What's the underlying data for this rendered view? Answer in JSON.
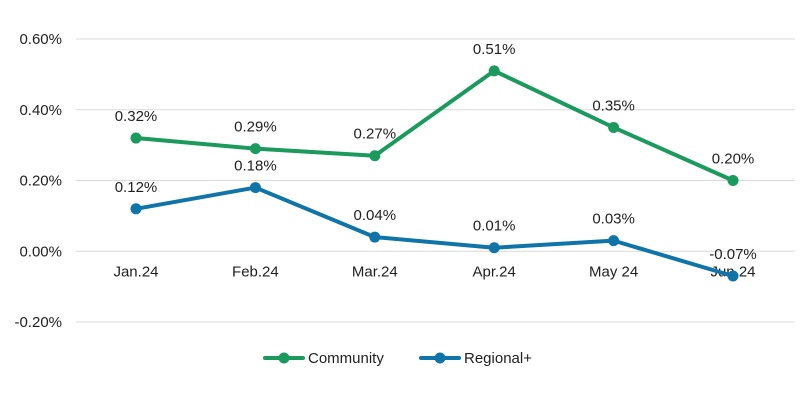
{
  "chart_data": {
    "type": "line",
    "categories": [
      "Jan.24",
      "Feb.24",
      "Mar.24",
      "Apr.24",
      "May 24",
      "Jun.24"
    ],
    "ylim": [
      -0.2,
      0.6
    ],
    "yticks": [
      -0.2,
      0.0,
      0.2,
      0.4,
      0.6
    ],
    "ytick_labels": [
      "-0.20%",
      "0.00%",
      "0.20%",
      "0.40%",
      "0.60%"
    ],
    "grid": true,
    "legend_position": "bottom",
    "series": [
      {
        "name": "Community",
        "color": "#1a9a5c",
        "values": [
          0.32,
          0.29,
          0.27,
          0.51,
          0.35,
          0.2
        ],
        "labels": [
          "0.32%",
          "0.29%",
          "0.27%",
          "0.51%",
          "0.35%",
          "0.20%"
        ]
      },
      {
        "name": "Regional+",
        "color": "#0f74a8",
        "values": [
          0.12,
          0.18,
          0.04,
          0.01,
          0.03,
          -0.07
        ],
        "labels": [
          "0.12%",
          "0.18%",
          "0.04%",
          "0.01%",
          "0.03%",
          "-0.07%"
        ]
      }
    ]
  }
}
